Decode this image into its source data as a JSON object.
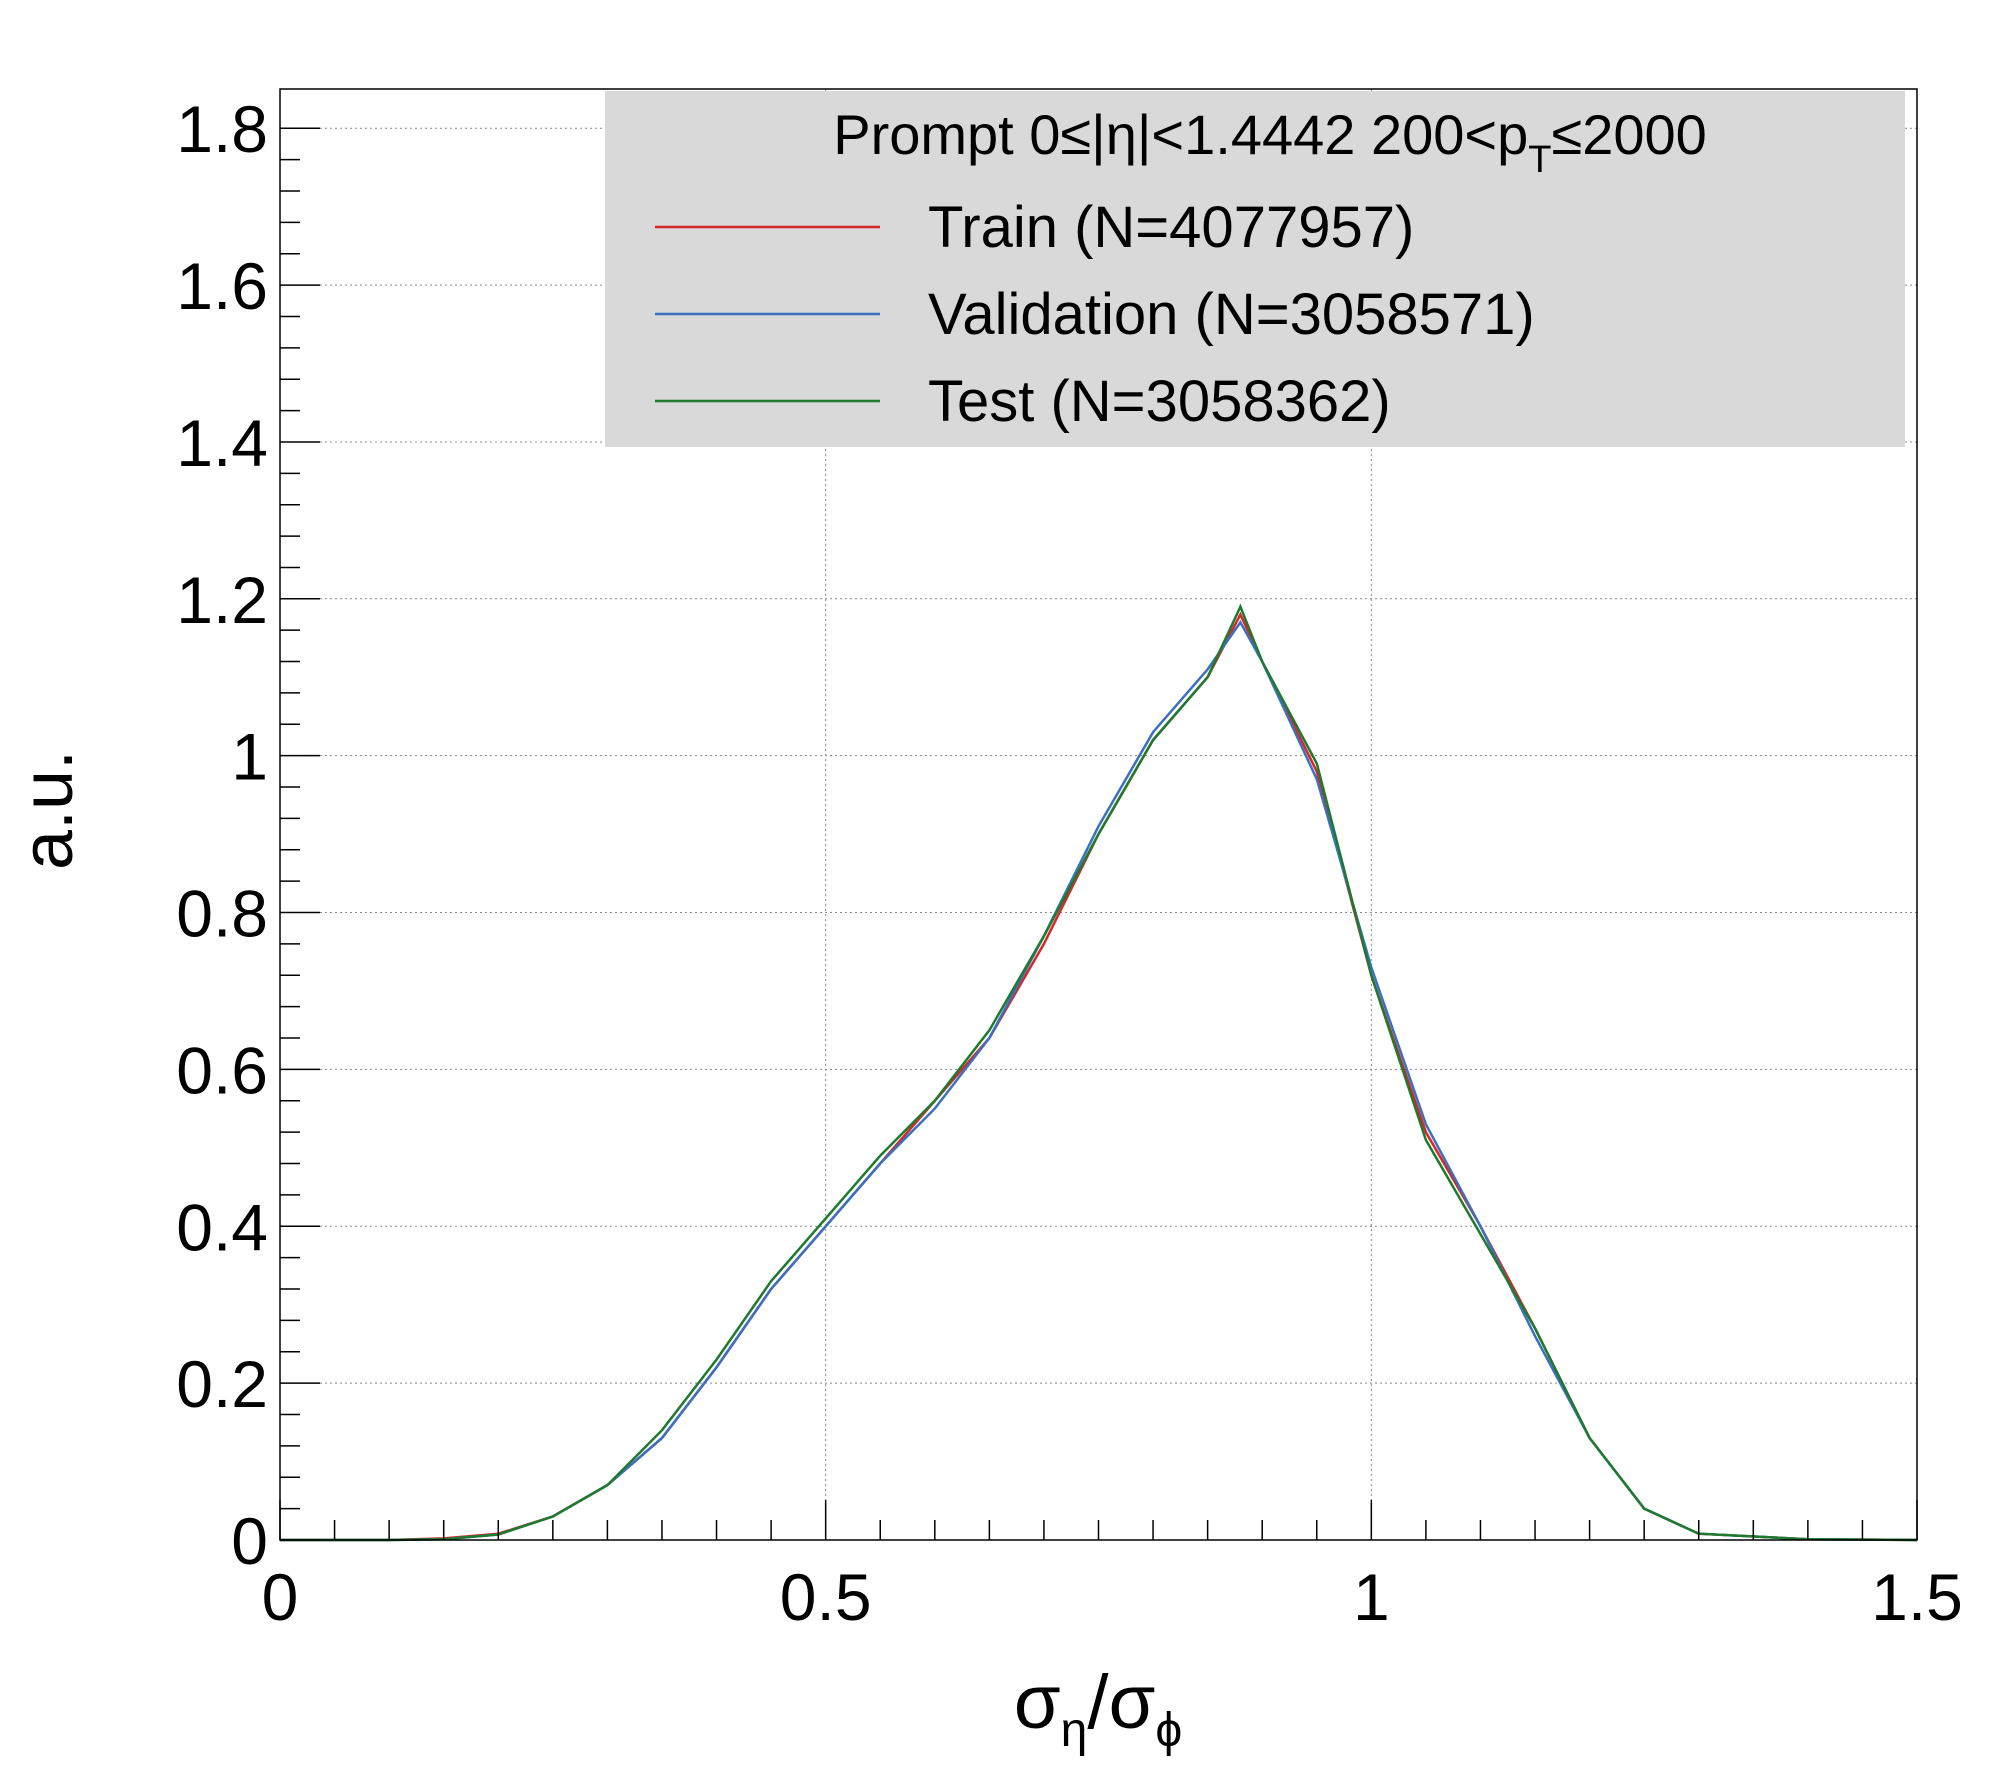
{
  "chart_data": {
    "type": "line",
    "title": "",
    "xlabel": "σ_η/σ_φ",
    "ylabel": "a.u.",
    "xlim": [
      0,
      1.5
    ],
    "ylim": [
      0,
      1.85
    ],
    "grid": true,
    "legend_position": "top-right",
    "legend_header": {
      "prefix": "Prompt  0≤|η|<1.4442  200<p",
      "subscript": "T",
      "suffix": "≤2000"
    },
    "x_tick_labels": [
      "0",
      "0.5",
      "1",
      "1.5"
    ],
    "y_tick_labels": [
      "0",
      "0.2",
      "0.4",
      "0.6",
      "0.8",
      "1",
      "1.2",
      "1.4",
      "1.6",
      "1.8"
    ],
    "x_ticks": [
      0,
      0.5,
      1,
      1.5
    ],
    "y_ticks": [
      0,
      0.2,
      0.4,
      0.6,
      0.8,
      1.0,
      1.2,
      1.4,
      1.6,
      1.8
    ],
    "x": [
      0.1,
      0.15,
      0.2,
      0.25,
      0.3,
      0.35,
      0.4,
      0.45,
      0.5,
      0.55,
      0.6,
      0.65,
      0.7,
      0.75,
      0.8,
      0.85,
      0.88,
      0.9,
      0.95,
      1.0,
      1.05,
      1.1,
      1.15,
      1.2,
      1.25,
      1.3,
      1.4,
      1.5
    ],
    "series": [
      {
        "name": "Train (N=4077957)",
        "color": "#d62728",
        "values": [
          0,
          0.002,
          0.008,
          0.03,
          0.07,
          0.13,
          0.22,
          0.32,
          0.4,
          0.48,
          0.56,
          0.64,
          0.76,
          0.9,
          1.02,
          1.1,
          1.18,
          1.12,
          0.98,
          0.72,
          0.52,
          0.4,
          0.27,
          0.13,
          0.04,
          0.008,
          0.001,
          0
        ]
      },
      {
        "name": "Validation (N=3058571)",
        "color": "#3a70c0",
        "values": [
          0,
          0.001,
          0.007,
          0.03,
          0.07,
          0.13,
          0.22,
          0.32,
          0.4,
          0.48,
          0.55,
          0.64,
          0.77,
          0.91,
          1.03,
          1.11,
          1.17,
          1.12,
          0.97,
          0.73,
          0.53,
          0.4,
          0.26,
          0.13,
          0.04,
          0.008,
          0.001,
          0
        ]
      },
      {
        "name": "Test (N=3058362)",
        "color": "#1e7a2e",
        "values": [
          0,
          0.001,
          0.007,
          0.03,
          0.07,
          0.14,
          0.23,
          0.33,
          0.41,
          0.49,
          0.56,
          0.65,
          0.77,
          0.9,
          1.02,
          1.1,
          1.19,
          1.12,
          0.99,
          0.72,
          0.51,
          0.39,
          0.27,
          0.13,
          0.04,
          0.008,
          0.001,
          0
        ]
      }
    ]
  }
}
